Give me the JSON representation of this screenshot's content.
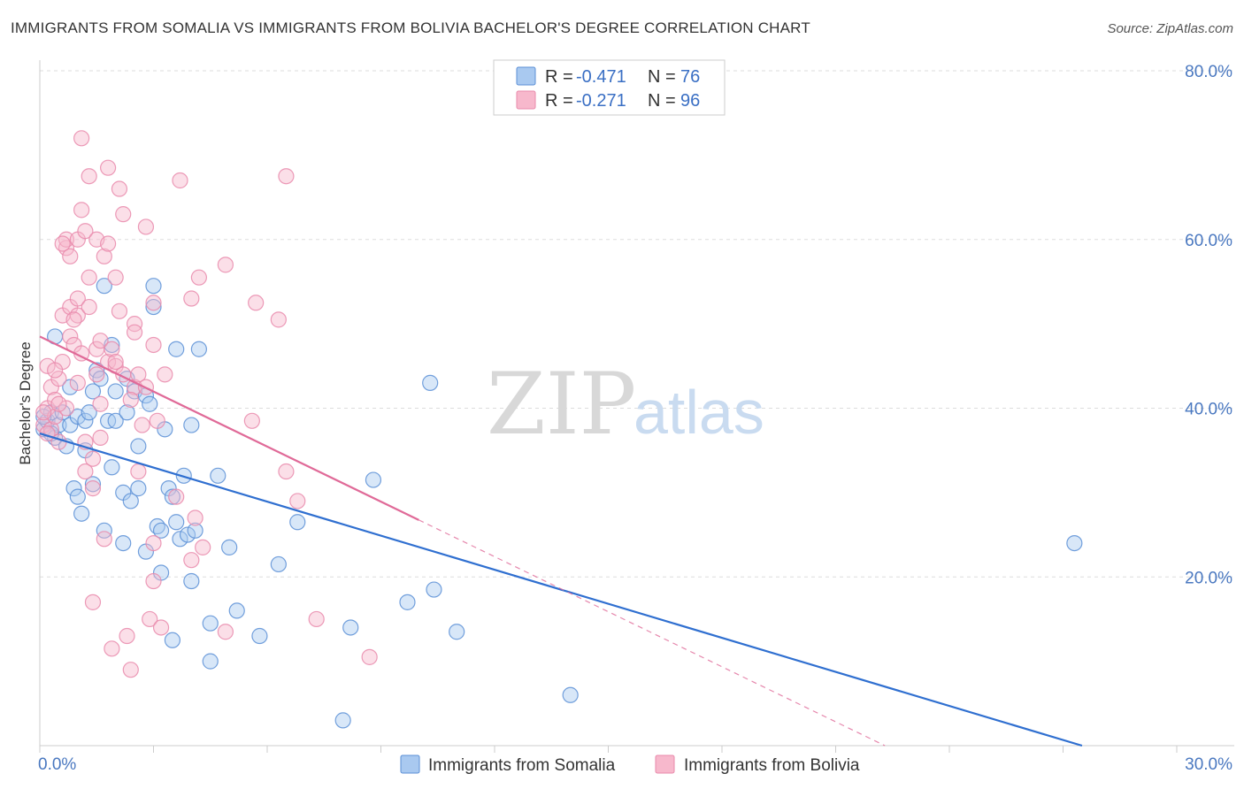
{
  "title": "IMMIGRANTS FROM SOMALIA VS IMMIGRANTS FROM BOLIVIA BACHELOR'S DEGREE CORRELATION CHART",
  "source": "Source: ZipAtlas.com",
  "watermark": {
    "zip": "ZIP",
    "atlas": "atlas"
  },
  "colors": {
    "somalia_fill": "#a9c9f0",
    "somalia_stroke": "#5b8fd6",
    "somalia_line": "#2f6fd0",
    "bolivia_fill": "#f7b8cc",
    "bolivia_stroke": "#e98aab",
    "bolivia_line": "#e06a98",
    "grid": "#dddddd",
    "tick_text": "#4a78c0"
  },
  "legend": {
    "r_label": "R =",
    "n_label": "N =",
    "somalia": {
      "r": "-0.471",
      "n": "76"
    },
    "bolivia": {
      "r": "-0.271",
      "n": "96"
    }
  },
  "chart_data": {
    "type": "scatter",
    "ylabel": "Bachelor's Degree",
    "xlabel": "",
    "xlim": [
      0,
      30
    ],
    "ylim": [
      0,
      80
    ],
    "x_tick_labels": [
      "0.0%",
      "30.0%"
    ],
    "y_tick_labels": [
      "20.0%",
      "40.0%",
      "60.0%",
      "80.0%"
    ],
    "y_ticks": [
      20,
      40,
      60,
      80
    ],
    "grid": "horizontal dashed",
    "legend_position": "top-center",
    "series": [
      {
        "name": "Immigrants from Somalia",
        "trend": {
          "x0": 0,
          "y0": 37.0,
          "x1": 27.5,
          "y1": 0.0,
          "solid_until": 27.5
        },
        "points": [
          [
            0.1,
            37.5
          ],
          [
            0.2,
            38.5
          ],
          [
            0.3,
            39.5
          ],
          [
            0.4,
            48.5
          ],
          [
            0.4,
            36.5
          ],
          [
            0.5,
            38.0
          ],
          [
            0.6,
            39.5
          ],
          [
            0.7,
            35.5
          ],
          [
            0.8,
            38.0
          ],
          [
            0.8,
            42.5
          ],
          [
            0.9,
            30.5
          ],
          [
            1.0,
            39.0
          ],
          [
            1.0,
            29.5
          ],
          [
            1.1,
            27.5
          ],
          [
            1.2,
            35.0
          ],
          [
            1.2,
            38.5
          ],
          [
            1.3,
            39.5
          ],
          [
            1.4,
            31.0
          ],
          [
            1.4,
            42.0
          ],
          [
            1.5,
            44.5
          ],
          [
            1.6,
            43.5
          ],
          [
            1.7,
            25.5
          ],
          [
            1.7,
            54.5
          ],
          [
            1.8,
            38.5
          ],
          [
            1.9,
            47.5
          ],
          [
            1.9,
            33.0
          ],
          [
            2.0,
            42.0
          ],
          [
            2.0,
            38.5
          ],
          [
            2.2,
            24.0
          ],
          [
            2.2,
            30.0
          ],
          [
            2.3,
            43.5
          ],
          [
            2.3,
            39.5
          ],
          [
            2.4,
            29.0
          ],
          [
            2.5,
            42.0
          ],
          [
            2.6,
            35.5
          ],
          [
            2.6,
            30.5
          ],
          [
            2.8,
            41.5
          ],
          [
            2.8,
            23.0
          ],
          [
            2.9,
            40.5
          ],
          [
            3.0,
            54.5
          ],
          [
            3.0,
            52.0
          ],
          [
            3.1,
            26.0
          ],
          [
            3.2,
            25.5
          ],
          [
            3.2,
            20.5
          ],
          [
            3.3,
            37.5
          ],
          [
            3.4,
            30.5
          ],
          [
            3.5,
            29.5
          ],
          [
            3.5,
            12.5
          ],
          [
            3.6,
            47.0
          ],
          [
            3.6,
            26.5
          ],
          [
            3.7,
            24.5
          ],
          [
            3.8,
            32.0
          ],
          [
            3.9,
            25.0
          ],
          [
            4.0,
            38.0
          ],
          [
            4.0,
            19.5
          ],
          [
            4.1,
            25.5
          ],
          [
            4.2,
            47.0
          ],
          [
            4.5,
            14.5
          ],
          [
            4.5,
            10.0
          ],
          [
            4.7,
            32.0
          ],
          [
            5.0,
            23.5
          ],
          [
            5.2,
            16.0
          ],
          [
            5.8,
            13.0
          ],
          [
            6.3,
            21.5
          ],
          [
            6.8,
            26.5
          ],
          [
            8.0,
            3.0
          ],
          [
            8.2,
            14.0
          ],
          [
            8.8,
            31.5
          ],
          [
            9.7,
            17.0
          ],
          [
            10.3,
            43.0
          ],
          [
            10.4,
            18.5
          ],
          [
            11.0,
            13.5
          ],
          [
            14.0,
            6.0
          ],
          [
            27.3,
            24.0
          ],
          [
            0.1,
            39.0
          ],
          [
            0.3,
            37.0
          ]
        ]
      },
      {
        "name": "Immigrants from Bolivia",
        "trend": {
          "x0": 0,
          "y0": 48.5,
          "x1": 22.3,
          "y1": 0.0,
          "solid_until": 10.0
        },
        "points": [
          [
            0.1,
            38.0
          ],
          [
            0.2,
            40.0
          ],
          [
            0.2,
            45.0
          ],
          [
            0.3,
            42.5
          ],
          [
            0.3,
            37.5
          ],
          [
            0.4,
            41.0
          ],
          [
            0.4,
            39.0
          ],
          [
            0.5,
            43.5
          ],
          [
            0.5,
            36.0
          ],
          [
            0.6,
            45.5
          ],
          [
            0.6,
            51.0
          ],
          [
            0.7,
            40.0
          ],
          [
            0.7,
            59.0
          ],
          [
            0.7,
            60.0
          ],
          [
            0.8,
            52.0
          ],
          [
            0.8,
            48.5
          ],
          [
            0.8,
            58.0
          ],
          [
            0.9,
            47.5
          ],
          [
            1.0,
            43.0
          ],
          [
            1.0,
            53.0
          ],
          [
            1.0,
            51.0
          ],
          [
            1.0,
            60.0
          ],
          [
            1.1,
            72.0
          ],
          [
            1.1,
            46.5
          ],
          [
            1.1,
            63.5
          ],
          [
            1.2,
            61.0
          ],
          [
            1.2,
            32.5
          ],
          [
            1.3,
            67.5
          ],
          [
            1.3,
            55.5
          ],
          [
            1.3,
            52.0
          ],
          [
            1.4,
            34.0
          ],
          [
            1.4,
            17.0
          ],
          [
            1.5,
            44.0
          ],
          [
            1.5,
            60.0
          ],
          [
            1.5,
            47.0
          ],
          [
            1.6,
            48.0
          ],
          [
            1.6,
            40.5
          ],
          [
            1.7,
            58.0
          ],
          [
            1.7,
            24.5
          ],
          [
            1.8,
            68.5
          ],
          [
            1.8,
            59.5
          ],
          [
            1.8,
            45.5
          ],
          [
            1.9,
            47.0
          ],
          [
            1.9,
            11.5
          ],
          [
            2.0,
            45.0
          ],
          [
            2.0,
            55.5
          ],
          [
            2.1,
            66.0
          ],
          [
            2.1,
            51.5
          ],
          [
            2.2,
            63.0
          ],
          [
            2.2,
            44.0
          ],
          [
            2.3,
            13.0
          ],
          [
            2.4,
            9.0
          ],
          [
            2.5,
            50.0
          ],
          [
            2.5,
            49.0
          ],
          [
            2.5,
            42.5
          ],
          [
            2.6,
            44.0
          ],
          [
            2.7,
            38.0
          ],
          [
            2.8,
            61.5
          ],
          [
            2.8,
            42.5
          ],
          [
            2.9,
            15.0
          ],
          [
            3.0,
            47.5
          ],
          [
            3.0,
            52.5
          ],
          [
            3.0,
            19.5
          ],
          [
            3.1,
            38.5
          ],
          [
            3.2,
            14.0
          ],
          [
            3.3,
            44.0
          ],
          [
            3.6,
            29.5
          ],
          [
            3.7,
            67.0
          ],
          [
            4.0,
            53.0
          ],
          [
            4.0,
            22.0
          ],
          [
            4.2,
            55.5
          ],
          [
            4.3,
            23.5
          ],
          [
            4.9,
            57.0
          ],
          [
            4.9,
            13.5
          ],
          [
            5.6,
            38.5
          ],
          [
            5.7,
            52.5
          ],
          [
            6.3,
            50.5
          ],
          [
            6.5,
            32.5
          ],
          [
            6.5,
            67.5
          ],
          [
            6.8,
            29.0
          ],
          [
            7.3,
            15.0
          ],
          [
            8.7,
            10.5
          ],
          [
            0.1,
            39.5
          ],
          [
            0.2,
            37.0
          ],
          [
            0.4,
            44.5
          ],
          [
            0.5,
            40.5
          ],
          [
            0.6,
            59.5
          ],
          [
            0.9,
            50.5
          ],
          [
            1.2,
            36.0
          ],
          [
            1.4,
            30.5
          ],
          [
            1.6,
            36.5
          ],
          [
            2.0,
            45.5
          ],
          [
            2.4,
            41.0
          ],
          [
            2.6,
            32.5
          ],
          [
            3.0,
            24.0
          ],
          [
            4.1,
            27.0
          ]
        ]
      }
    ],
    "bottom_legend": [
      "Immigrants from Somalia",
      "Immigrants from Bolivia"
    ]
  }
}
